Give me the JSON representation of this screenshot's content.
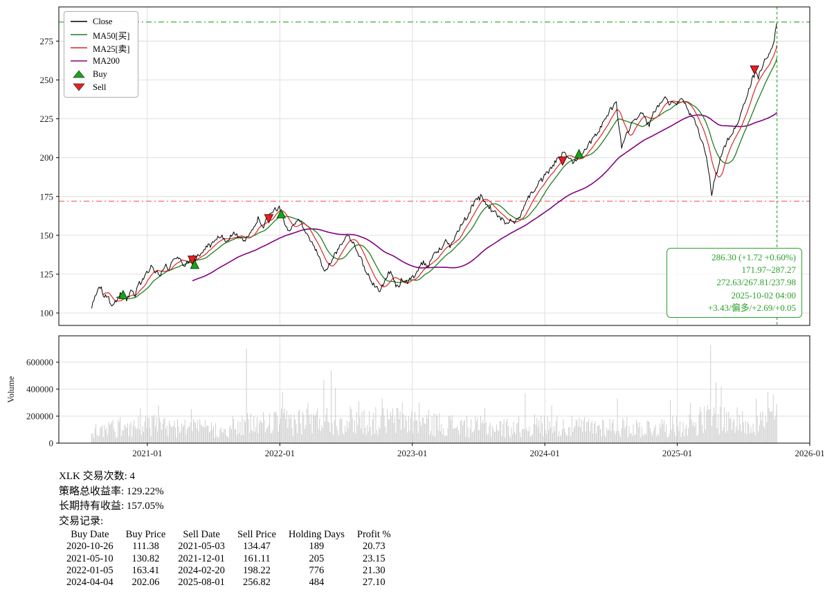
{
  "chart_data": {
    "type": "line",
    "symbol": "XLK",
    "x_ticks": [
      "2021-01",
      "2022-01",
      "2023-01",
      "2024-01",
      "2025-01",
      "2026-01"
    ],
    "price_axis_ticks": [
      100,
      125,
      150,
      175,
      200,
      225,
      250,
      275
    ],
    "volume_axis_ticks": [
      0,
      200000,
      400000,
      600000
    ],
    "ylabel_volume": "Volume",
    "grid": true,
    "legend_position": "upper-left",
    "legend": [
      {
        "key": "close",
        "label": "Close",
        "color": "#000000",
        "type": "line"
      },
      {
        "key": "ma50",
        "label": "MA50[买]",
        "color": "#1e7d1e",
        "type": "line"
      },
      {
        "key": "ma25",
        "label": "MA25[卖]",
        "color": "#d62728",
        "type": "line"
      },
      {
        "key": "ma200",
        "label": "MA200",
        "color": "#800080",
        "type": "line"
      },
      {
        "key": "buy",
        "label": "Buy",
        "color": "#19a519",
        "type": "triangle-up"
      },
      {
        "key": "sell",
        "label": "Sell",
        "color": "#e62020",
        "type": "triangle-down"
      }
    ],
    "hline_green": 287.27,
    "hline_red": 171.97,
    "vline_date": "2025-10-02",
    "ma_windows_days": {
      "ma25": 25,
      "ma50": 50,
      "ma200": 200
    },
    "annotation": {
      "color": "#2ca02c",
      "lines": [
        "286.30 (+1.72 +0.60%)",
        "171.97~287.27",
        "272.63/267.81/237.98",
        "2025-10-02 04:00",
        "+3.43/偏多/+2.69/+0.05"
      ]
    },
    "close_series": [
      [
        2020.58,
        103
      ],
      [
        2020.6,
        109
      ],
      [
        2020.62,
        114
      ],
      [
        2020.65,
        116
      ],
      [
        2020.67,
        109
      ],
      [
        2020.7,
        112
      ],
      [
        2020.72,
        106
      ],
      [
        2020.75,
        105
      ],
      [
        2020.78,
        111
      ],
      [
        2020.81,
        112
      ],
      [
        2020.83,
        108
      ],
      [
        2020.86,
        110
      ],
      [
        2020.88,
        114
      ],
      [
        2020.91,
        112
      ],
      [
        2020.93,
        118
      ],
      [
        2020.96,
        121
      ],
      [
        2021.0,
        126
      ],
      [
        2021.03,
        130
      ],
      [
        2021.06,
        127
      ],
      [
        2021.1,
        124
      ],
      [
        2021.13,
        131
      ],
      [
        2021.16,
        128
      ],
      [
        2021.19,
        133
      ],
      [
        2021.22,
        136
      ],
      [
        2021.25,
        134
      ],
      [
        2021.28,
        131
      ],
      [
        2021.31,
        134
      ],
      [
        2021.33,
        137
      ],
      [
        2021.36,
        135
      ],
      [
        2021.4,
        138
      ],
      [
        2021.43,
        141
      ],
      [
        2021.46,
        143
      ],
      [
        2021.5,
        145
      ],
      [
        2021.53,
        148
      ],
      [
        2021.56,
        150
      ],
      [
        2021.6,
        146
      ],
      [
        2021.63,
        149
      ],
      [
        2021.66,
        152
      ],
      [
        2021.69,
        149
      ],
      [
        2021.72,
        146
      ],
      [
        2021.75,
        148
      ],
      [
        2021.78,
        153
      ],
      [
        2021.81,
        157
      ],
      [
        2021.84,
        161
      ],
      [
        2021.86,
        158
      ],
      [
        2021.88,
        155
      ],
      [
        2021.9,
        160
      ],
      [
        2021.93,
        164
      ],
      [
        2021.96,
        166
      ],
      [
        2022.0,
        168
      ],
      [
        2022.02,
        162
      ],
      [
        2022.05,
        155
      ],
      [
        2022.08,
        152
      ],
      [
        2022.11,
        158
      ],
      [
        2022.14,
        161
      ],
      [
        2022.17,
        156
      ],
      [
        2022.2,
        152
      ],
      [
        2022.23,
        147
      ],
      [
        2022.26,
        142
      ],
      [
        2022.29,
        137
      ],
      [
        2022.32,
        131
      ],
      [
        2022.35,
        127
      ],
      [
        2022.38,
        132
      ],
      [
        2022.42,
        138
      ],
      [
        2022.45,
        143
      ],
      [
        2022.48,
        147
      ],
      [
        2022.52,
        150
      ],
      [
        2022.55,
        146
      ],
      [
        2022.58,
        141
      ],
      [
        2022.62,
        133
      ],
      [
        2022.65,
        127
      ],
      [
        2022.68,
        122
      ],
      [
        2022.72,
        117
      ],
      [
        2022.75,
        114
      ],
      [
        2022.78,
        119
      ],
      [
        2022.81,
        124
      ],
      [
        2022.84,
        127
      ],
      [
        2022.86,
        120
      ],
      [
        2022.89,
        116
      ],
      [
        2022.92,
        122
      ],
      [
        2022.95,
        119
      ],
      [
        2022.98,
        121
      ],
      [
        2023.02,
        125
      ],
      [
        2023.05,
        129
      ],
      [
        2023.08,
        133
      ],
      [
        2023.12,
        130
      ],
      [
        2023.15,
        136
      ],
      [
        2023.18,
        139
      ],
      [
        2023.22,
        142
      ],
      [
        2023.25,
        146
      ],
      [
        2023.28,
        143
      ],
      [
        2023.32,
        149
      ],
      [
        2023.35,
        154
      ],
      [
        2023.38,
        158
      ],
      [
        2023.42,
        163
      ],
      [
        2023.45,
        168
      ],
      [
        2023.48,
        172
      ],
      [
        2023.52,
        175
      ],
      [
        2023.55,
        171
      ],
      [
        2023.58,
        168
      ],
      [
        2023.62,
        165
      ],
      [
        2023.65,
        162
      ],
      [
        2023.68,
        160
      ],
      [
        2023.72,
        157
      ],
      [
        2023.75,
        161
      ],
      [
        2023.78,
        158
      ],
      [
        2023.82,
        164
      ],
      [
        2023.85,
        170
      ],
      [
        2023.88,
        175
      ],
      [
        2023.92,
        179
      ],
      [
        2023.95,
        183
      ],
      [
        2023.98,
        186
      ],
      [
        2024.02,
        190
      ],
      [
        2024.05,
        194
      ],
      [
        2024.08,
        197
      ],
      [
        2024.12,
        201
      ],
      [
        2024.15,
        204
      ],
      [
        2024.18,
        200
      ],
      [
        2024.22,
        197
      ],
      [
        2024.25,
        201
      ],
      [
        2024.28,
        203
      ],
      [
        2024.32,
        207
      ],
      [
        2024.35,
        211
      ],
      [
        2024.38,
        215
      ],
      [
        2024.42,
        219
      ],
      [
        2024.45,
        224
      ],
      [
        2024.48,
        229
      ],
      [
        2024.52,
        233
      ],
      [
        2024.54,
        235
      ],
      [
        2024.56,
        220
      ],
      [
        2024.58,
        207
      ],
      [
        2024.61,
        214
      ],
      [
        2024.64,
        219
      ],
      [
        2024.67,
        223
      ],
      [
        2024.7,
        227
      ],
      [
        2024.73,
        230
      ],
      [
        2024.76,
        224
      ],
      [
        2024.79,
        221
      ],
      [
        2024.82,
        228
      ],
      [
        2024.85,
        233
      ],
      [
        2024.88,
        237
      ],
      [
        2024.91,
        240
      ],
      [
        2024.94,
        234
      ],
      [
        2024.97,
        237
      ],
      [
        2025.0,
        235
      ],
      [
        2025.03,
        239
      ],
      [
        2025.06,
        234
      ],
      [
        2025.09,
        229
      ],
      [
        2025.12,
        225
      ],
      [
        2025.15,
        219
      ],
      [
        2025.18,
        212
      ],
      [
        2025.21,
        205
      ],
      [
        2025.24,
        190
      ],
      [
        2025.26,
        177
      ],
      [
        2025.29,
        188
      ],
      [
        2025.32,
        198
      ],
      [
        2025.35,
        205
      ],
      [
        2025.38,
        211
      ],
      [
        2025.42,
        217
      ],
      [
        2025.45,
        222
      ],
      [
        2025.48,
        228
      ],
      [
        2025.51,
        236
      ],
      [
        2025.54,
        244
      ],
      [
        2025.57,
        251
      ],
      [
        2025.59,
        255
      ],
      [
        2025.61,
        251
      ],
      [
        2025.63,
        257
      ],
      [
        2025.66,
        262
      ],
      [
        2025.69,
        266
      ],
      [
        2025.72,
        272
      ],
      [
        2025.74,
        280
      ],
      [
        2025.75,
        286.3
      ]
    ],
    "volume_profile": [
      [
        2020.58,
        80000
      ],
      [
        2020.8,
        110000
      ],
      [
        2021.0,
        125000
      ],
      [
        2021.2,
        105000
      ],
      [
        2021.5,
        95000
      ],
      [
        2021.7,
        120000
      ],
      [
        2021.9,
        135000
      ],
      [
        2022.1,
        150000
      ],
      [
        2022.3,
        155000
      ],
      [
        2022.5,
        160000
      ],
      [
        2022.7,
        150000
      ],
      [
        2022.9,
        155000
      ],
      [
        2023.1,
        140000
      ],
      [
        2023.4,
        115000
      ],
      [
        2023.7,
        105000
      ],
      [
        2023.95,
        125000
      ],
      [
        2024.2,
        110000
      ],
      [
        2024.5,
        115000
      ],
      [
        2024.75,
        105000
      ],
      [
        2025.0,
        115000
      ],
      [
        2025.2,
        160000
      ],
      [
        2025.3,
        170000
      ],
      [
        2025.5,
        140000
      ],
      [
        2025.65,
        150000
      ],
      [
        2025.75,
        190000
      ]
    ],
    "volume_spikes": [
      [
        2020.95,
        260000
      ],
      [
        2021.08,
        280000
      ],
      [
        2021.33,
        250000
      ],
      [
        2021.75,
        700000
      ],
      [
        2022.02,
        380000
      ],
      [
        2022.21,
        300000
      ],
      [
        2022.33,
        470000
      ],
      [
        2022.385,
        540000
      ],
      [
        2022.42,
        410000
      ],
      [
        2022.6,
        310000
      ],
      [
        2022.77,
        330000
      ],
      [
        2022.92,
        300000
      ],
      [
        2023.05,
        300000
      ],
      [
        2023.55,
        260000
      ],
      [
        2023.85,
        370000
      ],
      [
        2024.05,
        280000
      ],
      [
        2024.55,
        330000
      ],
      [
        2024.95,
        320000
      ],
      [
        2025.1,
        300000
      ],
      [
        2025.255,
        730000
      ],
      [
        2025.29,
        450000
      ],
      [
        2025.33,
        420000
      ],
      [
        2025.6,
        330000
      ],
      [
        2025.68,
        380000
      ],
      [
        2025.72,
        360000
      ]
    ]
  },
  "summary": {
    "lines": [
      "XLK 交易次数: 4",
      "策略总收益率: 129.22%",
      "长期持有收益: 157.05%",
      "交易记录:"
    ]
  },
  "trades_table": {
    "headers": [
      "Buy Date",
      "Buy Price",
      "Sell Date",
      "Sell Price",
      "Holding Days",
      "Profit %"
    ],
    "rows": [
      [
        "2020-10-26",
        "111.38",
        "2021-05-03",
        "134.47",
        "189",
        "20.73"
      ],
      [
        "2021-05-10",
        "130.82",
        "2021-12-01",
        "161.11",
        "205",
        "23.15"
      ],
      [
        "2022-01-05",
        "163.41",
        "2024-02-20",
        "198.22",
        "776",
        "21.30"
      ],
      [
        "2024-04-04",
        "202.06",
        "2025-08-01",
        "256.82",
        "484",
        "27.10"
      ]
    ]
  }
}
